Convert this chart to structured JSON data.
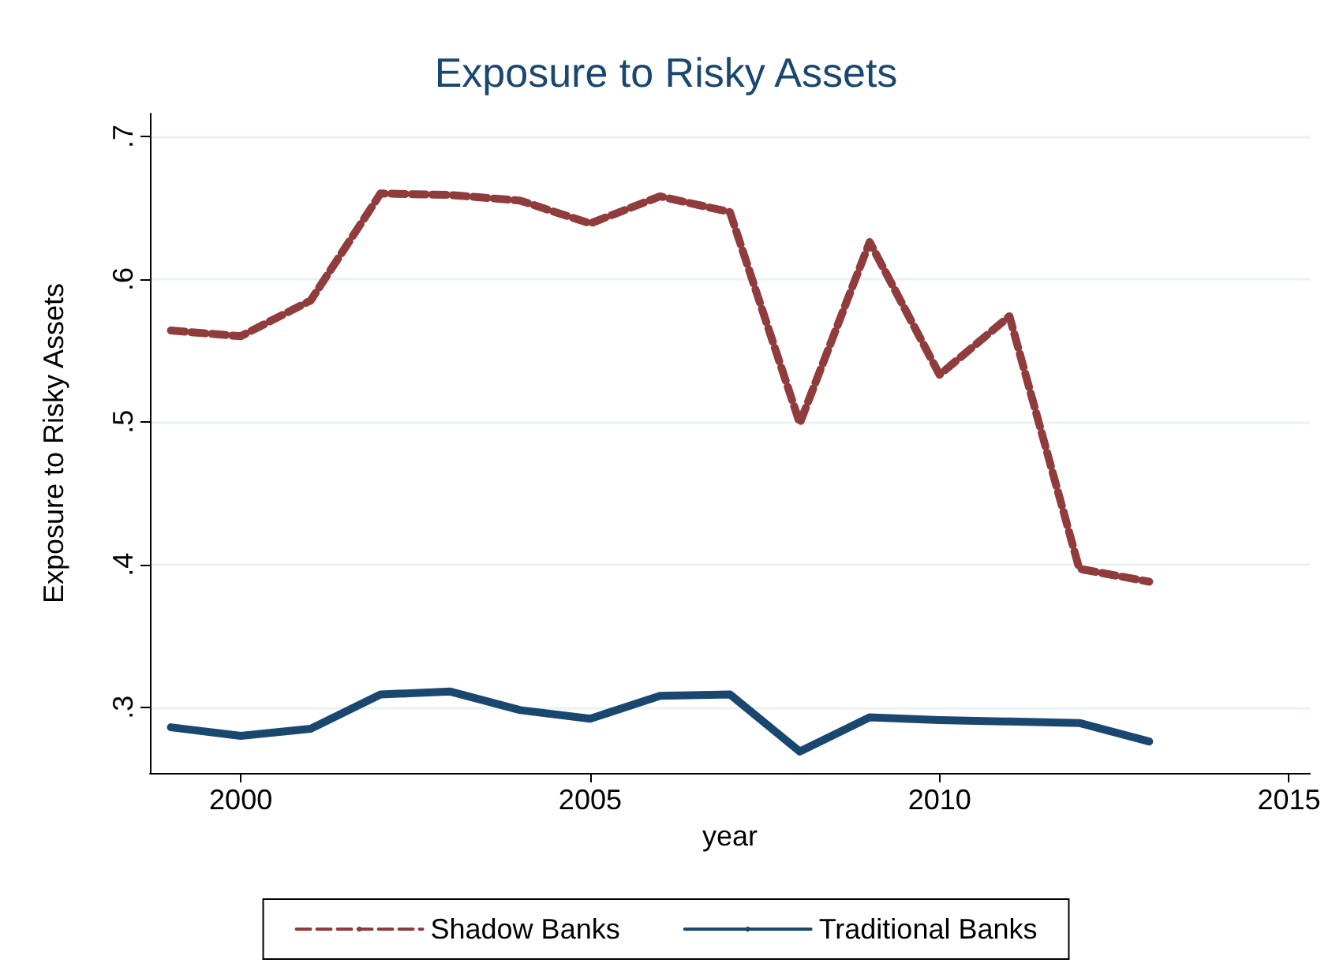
{
  "chart_data": {
    "type": "line",
    "title": "Exposure to Risky Assets",
    "xlabel": "year",
    "ylabel": "Exposure to Risky Assets",
    "x": [
      1999,
      2000,
      2001,
      2002,
      2003,
      2004,
      2005,
      2006,
      2007,
      2008,
      2009,
      2010,
      2011,
      2012,
      2013
    ],
    "series": [
      {
        "name": "Shadow Banks",
        "color": "#903c3c",
        "line_style": "dashed",
        "values": [
          0.564,
          0.56,
          0.585,
          0.66,
          0.659,
          0.655,
          0.639,
          0.658,
          0.647,
          0.499,
          0.626,
          0.533,
          0.574,
          0.397,
          0.388
        ]
      },
      {
        "name": "Traditional Banks",
        "color": "#1a476f",
        "line_style": "solid",
        "values": [
          0.286,
          0.28,
          0.285,
          0.309,
          0.311,
          0.298,
          0.292,
          0.308,
          0.309,
          0.269,
          0.293,
          0.291,
          0.29,
          0.289,
          0.276
        ]
      }
    ],
    "xlim": [
      1998.7,
      2015.3
    ],
    "xticks": [
      2000,
      2005,
      2010,
      2015
    ],
    "ylim": [
      0.254,
      0.716
    ],
    "yticks": [
      {
        "value": 0.3,
        "label": ".3"
      },
      {
        "value": 0.4,
        "label": ".4"
      },
      {
        "value": 0.5,
        "label": ".5"
      },
      {
        "value": 0.6,
        "label": ".6"
      },
      {
        "value": 0.7,
        "label": ".7"
      }
    ],
    "grid": "y",
    "legend": "bottom",
    "marker": "none"
  }
}
